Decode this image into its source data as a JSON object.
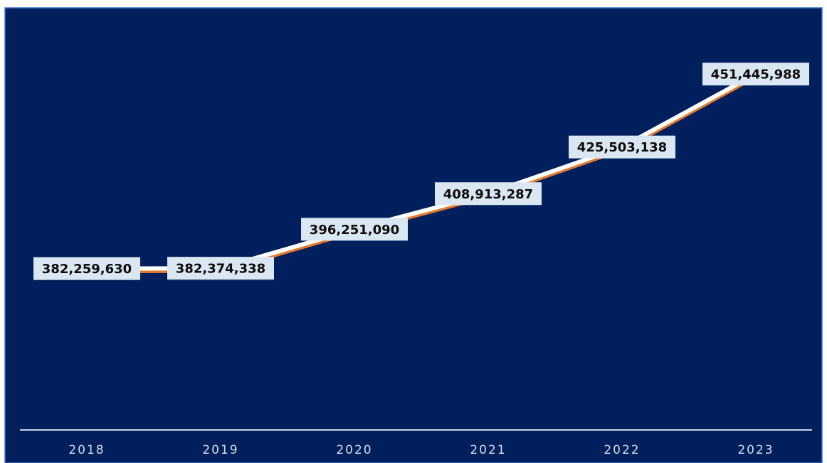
{
  "colors": {
    "background": "#001f5c",
    "frame": "#3a78c9",
    "line_main": "#ffffff",
    "line_accent": "#e07a2e",
    "label_box": "#dbe6f3",
    "axis": "#ffffff",
    "drop_line": "#c8d0e0"
  },
  "chart_data": {
    "type": "line",
    "title": "",
    "xlabel": "",
    "ylabel": "",
    "categories": [
      "2018",
      "2019",
      "2020",
      "2021",
      "2022",
      "2023"
    ],
    "series": [
      {
        "values": [
          382259630,
          382374338,
          396251090,
          408913287,
          425503138,
          451445988
        ],
        "labels": [
          "382,259,630",
          "382,374,338",
          "396,251,090",
          "408,913,287",
          "425,503,138",
          "451,445,988"
        ]
      }
    ],
    "ylim": [
      325000000,
      475000000
    ],
    "grid": false,
    "legend": "none",
    "data_labels": true
  }
}
